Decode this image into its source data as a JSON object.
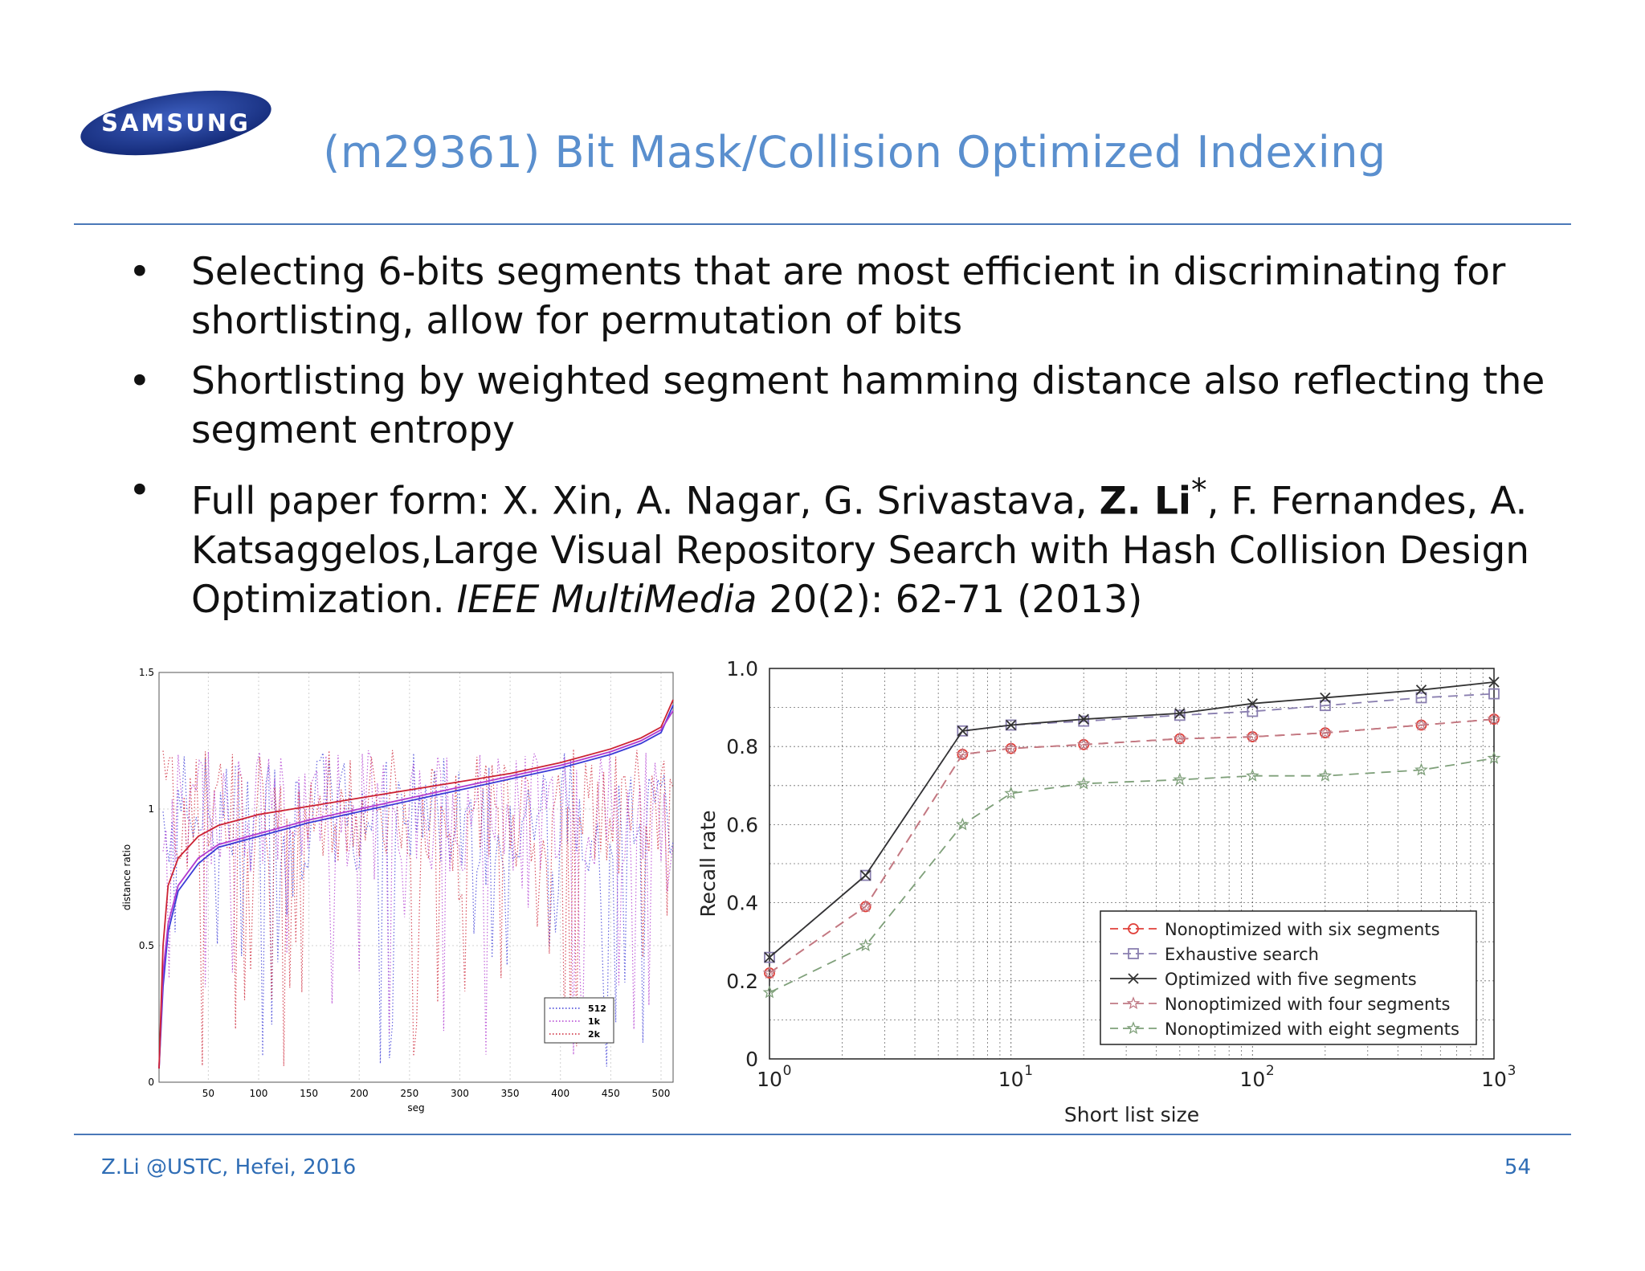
{
  "header": {
    "logo_text": "SAMSUNG",
    "title": "(m29361) Bit Mask/Collision Optimized Indexing"
  },
  "bullets": [
    {
      "text": "Selecting 6-bits segments that are most efficient in discriminating for shortlisting, allow for permutation of bits"
    },
    {
      "text": "Shortlisting by weighted segment hamming distance also reflecting the segment entropy"
    },
    {
      "pre": "Full paper form: X. Xin, A. Nagar, G. Srivastava, ",
      "bold": "Z. Li",
      "sup": "*",
      "mid": ", F. Fernandes, A. Katsaggelos,Large Visual Repository Search with Hash Collision Design Optimization. ",
      "italic": "IEEE MultiMedia",
      "post": " 20(2): 62-71 (2013)"
    }
  ],
  "footer": {
    "left": "Z.Li @USTC, Hefei, 2016",
    "page": "54"
  },
  "chart_data": [
    {
      "type": "line",
      "xlabel": "seg",
      "ylabel": "distance ratio",
      "xlim": [
        1,
        512
      ],
      "ylim": [
        0,
        1.5
      ],
      "xticks": [
        "50",
        "100",
        "150",
        "200",
        "250",
        "300",
        "350",
        "400",
        "450",
        "500"
      ],
      "yticks": [
        "0",
        "0.5",
        "1",
        "1.5"
      ],
      "grid": true,
      "legend_position": "lower-right",
      "legend": [
        "512",
        "1k",
        "2k"
      ],
      "series": [
        {
          "name": "512",
          "color": "#3b3bd6",
          "x": [
            1,
            5,
            10,
            20,
            40,
            60,
            80,
            100,
            150,
            200,
            250,
            300,
            350,
            400,
            450,
            480,
            500,
            512
          ],
          "values": [
            0.05,
            0.35,
            0.55,
            0.7,
            0.8,
            0.86,
            0.88,
            0.9,
            0.95,
            0.99,
            1.03,
            1.07,
            1.11,
            1.15,
            1.2,
            1.24,
            1.28,
            1.38
          ]
        },
        {
          "name": "1k",
          "color": "#b03ad0",
          "x": [
            1,
            5,
            10,
            20,
            40,
            60,
            80,
            100,
            150,
            200,
            250,
            300,
            350,
            400,
            450,
            480,
            500,
            512
          ],
          "values": [
            0.05,
            0.4,
            0.58,
            0.72,
            0.82,
            0.87,
            0.89,
            0.91,
            0.96,
            1.0,
            1.04,
            1.08,
            1.12,
            1.16,
            1.21,
            1.25,
            1.29,
            1.36
          ]
        },
        {
          "name": "2k",
          "color": "#cc2233",
          "x": [
            1,
            5,
            10,
            20,
            40,
            60,
            80,
            100,
            150,
            200,
            250,
            300,
            350,
            400,
            450,
            480,
            500,
            512
          ],
          "values": [
            0.05,
            0.5,
            0.72,
            0.82,
            0.9,
            0.94,
            0.96,
            0.98,
            1.01,
            1.04,
            1.07,
            1.1,
            1.13,
            1.17,
            1.22,
            1.26,
            1.3,
            1.4
          ]
        }
      ]
    },
    {
      "type": "line",
      "xlabel": "Short list size",
      "ylabel": "Recall rate",
      "xscale": "log",
      "xlim": [
        1,
        1000
      ],
      "ylim": [
        0,
        1.0
      ],
      "xticks": [
        1,
        10,
        100,
        1000
      ],
      "yticks": [
        "0",
        "0.2",
        "0.4",
        "0.6",
        "0.8",
        "1.0"
      ],
      "grid": true,
      "legend_position": "lower-right",
      "x": [
        1,
        2.5,
        6.3,
        10,
        20,
        50,
        100,
        200,
        500,
        1000
      ],
      "series": [
        {
          "name": "Nonoptimized with six segments",
          "color": "#e0403a",
          "dash": "12,8",
          "marker": "circle",
          "values": [
            0.22,
            0.39,
            0.78,
            0.795,
            0.805,
            0.82,
            0.825,
            0.835,
            0.855,
            0.87
          ]
        },
        {
          "name": "Exhaustive search",
          "color": "#8a7fb0",
          "dash": "12,8",
          "marker": "square",
          "values": [
            0.26,
            0.47,
            0.84,
            0.855,
            0.865,
            0.88,
            0.89,
            0.905,
            0.925,
            0.935
          ]
        },
        {
          "name": "Optimized with five segments",
          "color": "#333333",
          "dash": "",
          "marker": "x",
          "values": [
            0.26,
            0.47,
            0.84,
            0.855,
            0.87,
            0.885,
            0.91,
            0.925,
            0.945,
            0.965
          ]
        },
        {
          "name": "Nonoptimized with four segments",
          "color": "#c07a85",
          "dash": "12,8",
          "marker": "star",
          "values": [
            0.22,
            0.39,
            0.78,
            0.795,
            0.805,
            0.82,
            0.825,
            0.835,
            0.855,
            0.87
          ]
        },
        {
          "name": "Nonoptimized with eight segments",
          "color": "#7fa07a",
          "dash": "12,8",
          "marker": "star",
          "values": [
            0.17,
            0.29,
            0.6,
            0.68,
            0.705,
            0.715,
            0.725,
            0.725,
            0.74,
            0.77
          ]
        }
      ]
    }
  ]
}
